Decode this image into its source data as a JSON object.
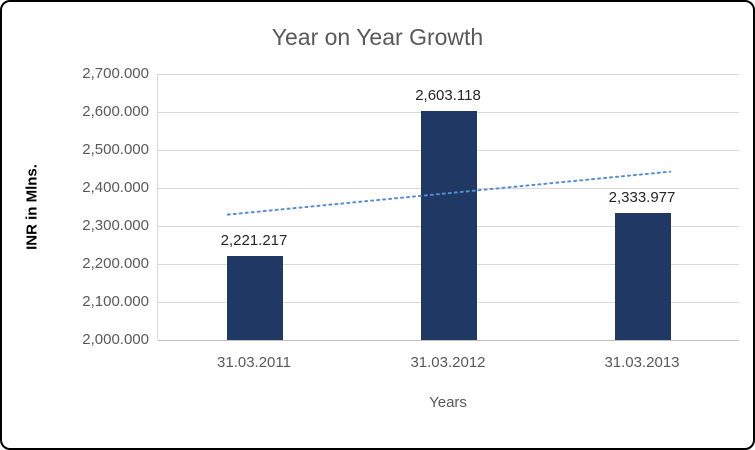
{
  "chart_data": {
    "type": "bar",
    "title": "Year on Year Growth",
    "xlabel": "Years",
    "ylabel": "INR in Mlns.",
    "categories": [
      "31.03.2011",
      "31.03.2012",
      "31.03.2013"
    ],
    "values": [
      2221.217,
      2603.118,
      2333.977
    ],
    "data_labels": [
      "2,221.217",
      "2,603.118",
      "2,333.977"
    ],
    "ylim": [
      2000,
      2700
    ],
    "ytick_step": 100,
    "ytick_labels": [
      "2,000.000",
      "2,100.000",
      "2,200.000",
      "2,300.000",
      "2,400.000",
      "2,500.000",
      "2,600.000",
      "2,700.000"
    ],
    "grid": true,
    "legend": "none",
    "bar_color": "#1F3864",
    "trendline": {
      "style": "dotted",
      "color": "#558ED5",
      "start_value": 2330,
      "end_value": 2443
    }
  }
}
